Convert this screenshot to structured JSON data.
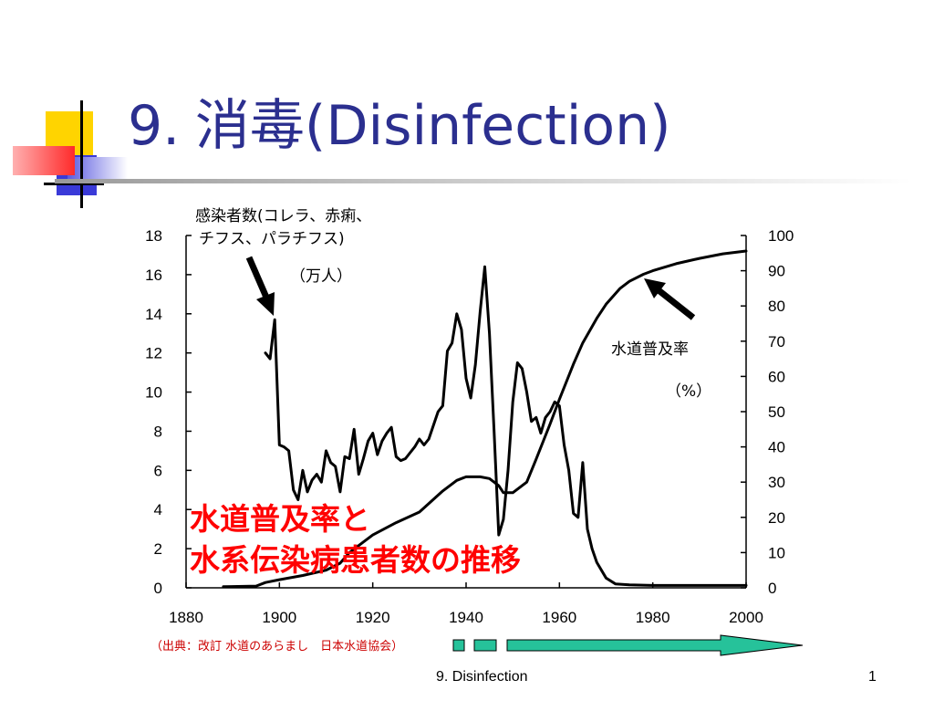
{
  "slide": {
    "title_number": "9.",
    "title_jp": "消毒",
    "title_en": "(Disinfection)",
    "footer_title": "9. Disinfection",
    "slide_number": "1",
    "source": "（出典：改訂 水道のあらまし　日本水道協会）"
  },
  "colors": {
    "title": "#2b2f8f",
    "deco_yellow": "#ffd400",
    "deco_blue": "#3a3ad8",
    "deco_red": "#ff3a3a",
    "highlight_red": "#ff0000",
    "arrow_fill": "#26c29a"
  },
  "chart_data": {
    "type": "line",
    "title_lines": [
      "水道普及率と",
      "水系伝染病患者数の推移"
    ],
    "x_ticks": [
      "1880",
      "1900",
      "1920",
      "1940",
      "1960",
      "1980",
      "2000"
    ],
    "xlim": [
      1880,
      2000
    ],
    "y_left_ticks": [
      "0",
      "2",
      "4",
      "6",
      "8",
      "10",
      "12",
      "14",
      "16",
      "18"
    ],
    "ylim_left": [
      0,
      18
    ],
    "y_right_ticks": [
      "0",
      "10",
      "20",
      "30",
      "40",
      "50",
      "60",
      "70",
      "80",
      "90",
      "100"
    ],
    "ylim_right": [
      0,
      100
    ],
    "grid": false,
    "annotations": {
      "patients_label_1": "感染者数(コレラ、赤痢、",
      "patients_label_2": "チフス、パラチフス)",
      "patients_unit": "（万人）",
      "coverage_label": "水道普及率",
      "coverage_unit": "（%）"
    },
    "series": [
      {
        "name": "感染者数(コレラ、赤痢、チフス、パラチフス)",
        "axis": "left",
        "x": [
          1897,
          1898,
          1899,
          1900,
          1901,
          1902,
          1903,
          1904,
          1905,
          1906,
          1907,
          1908,
          1909,
          1910,
          1911,
          1912,
          1913,
          1914,
          1915,
          1916,
          1917,
          1918,
          1919,
          1920,
          1921,
          1922,
          1923,
          1924,
          1925,
          1926,
          1927,
          1928,
          1929,
          1930,
          1931,
          1932,
          1933,
          1934,
          1935,
          1936,
          1937,
          1938,
          1939,
          1940,
          1941,
          1942,
          1943,
          1944,
          1945,
          1946,
          1947,
          1948,
          1949,
          1950,
          1951,
          1952,
          1953,
          1954,
          1955,
          1956,
          1957,
          1958,
          1959,
          1960,
          1961,
          1962,
          1963,
          1964,
          1965,
          1966,
          1967,
          1968,
          1970,
          1972,
          1975,
          1980,
          1985,
          1990,
          1995,
          2000
        ],
        "values": [
          12.0,
          11.7,
          13.7,
          7.3,
          7.2,
          7.0,
          5.0,
          4.5,
          6.0,
          4.9,
          5.5,
          5.8,
          5.4,
          7.0,
          6.4,
          6.2,
          4.9,
          6.7,
          6.6,
          8.1,
          5.8,
          6.6,
          7.5,
          7.9,
          6.8,
          7.5,
          7.9,
          8.2,
          6.7,
          6.5,
          6.6,
          6.9,
          7.2,
          7.6,
          7.3,
          7.6,
          8.3,
          9.0,
          9.3,
          12.1,
          12.5,
          14.0,
          13.2,
          10.7,
          9.7,
          11.4,
          14.1,
          16.4,
          13.0,
          8.0,
          2.7,
          3.5,
          6.0,
          9.5,
          11.5,
          11.2,
          10.0,
          8.5,
          8.7,
          7.9,
          8.7,
          9.0,
          9.5,
          9.3,
          7.3,
          6.0,
          3.8,
          3.6,
          6.4,
          3.0,
          2.0,
          1.3,
          0.5,
          0.2,
          0.15,
          0.12,
          0.12,
          0.12,
          0.12,
          0.12
        ]
      },
      {
        "name": "水道普及率",
        "axis": "right",
        "x": [
          1888,
          1895,
          1897,
          1900,
          1905,
          1910,
          1913,
          1915,
          1918,
          1920,
          1925,
          1930,
          1935,
          1938,
          1940,
          1943,
          1945,
          1947,
          1948,
          1950,
          1953,
          1955,
          1958,
          1960,
          1963,
          1965,
          1968,
          1970,
          1973,
          1975,
          1978,
          1980,
          1985,
          1990,
          1995,
          2000
        ],
        "values": [
          0.3,
          0.5,
          1.5,
          2.3,
          3.5,
          5.0,
          7.0,
          10.0,
          13.0,
          15.0,
          18.5,
          21.5,
          27.5,
          30.5,
          31.5,
          31.5,
          31.0,
          29.0,
          27.0,
          27.0,
          30.0,
          36.5,
          46.5,
          53.5,
          63.5,
          69.5,
          76.5,
          80.5,
          85.0,
          87.0,
          89.0,
          90.0,
          92.0,
          93.5,
          94.8,
          95.6
        ]
      }
    ]
  }
}
